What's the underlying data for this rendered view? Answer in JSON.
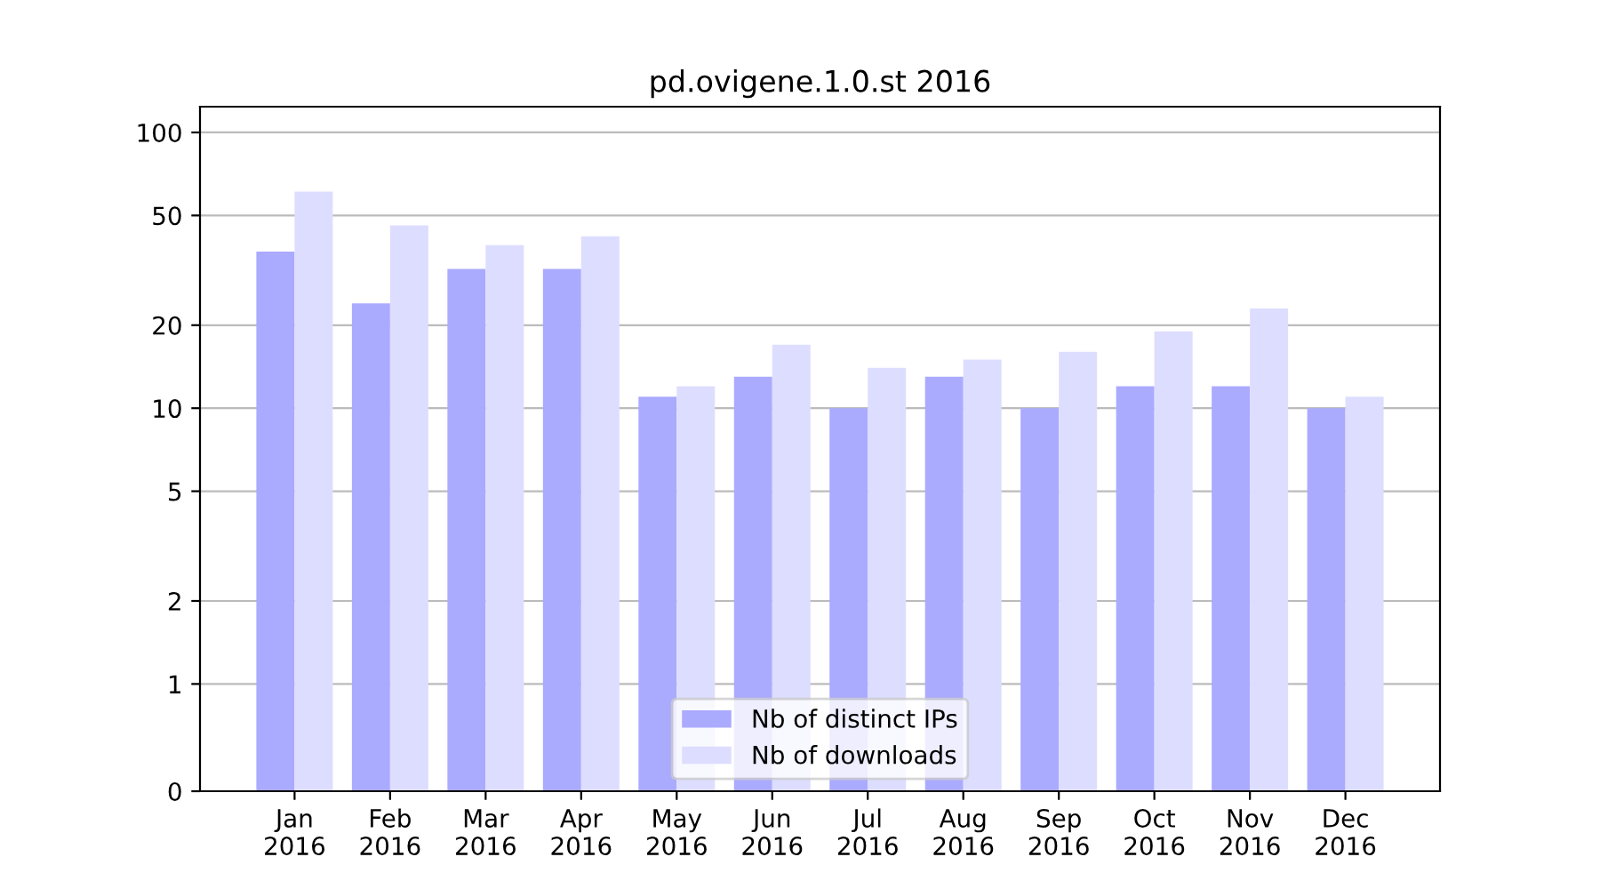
{
  "chart_data": {
    "type": "bar",
    "title": "pd.ovigene.1.0.st 2016",
    "categories": [
      "Jan\n2016",
      "Feb\n2016",
      "Mar\n2016",
      "Apr\n2016",
      "May\n2016",
      "Jun\n2016",
      "Jul\n2016",
      "Aug\n2016",
      "Sep\n2016",
      "Oct\n2016",
      "Nov\n2016",
      "Dec\n2016"
    ],
    "series": [
      {
        "name": "Nb of distinct IPs",
        "color": "#aaaaff",
        "values": [
          37,
          24,
          32,
          32,
          11,
          13,
          10,
          13,
          10,
          12,
          12,
          10
        ]
      },
      {
        "name": "Nb of downloads",
        "color": "#ddddff",
        "values": [
          61,
          46,
          39,
          42,
          12,
          17,
          14,
          15,
          16,
          19,
          23,
          11
        ]
      }
    ],
    "log": "y",
    "ylim": [
      0,
      124
    ],
    "yticks": [
      0,
      1,
      2,
      5,
      10,
      20,
      50,
      100
    ],
    "grid": "y",
    "legend": "bottom"
  }
}
